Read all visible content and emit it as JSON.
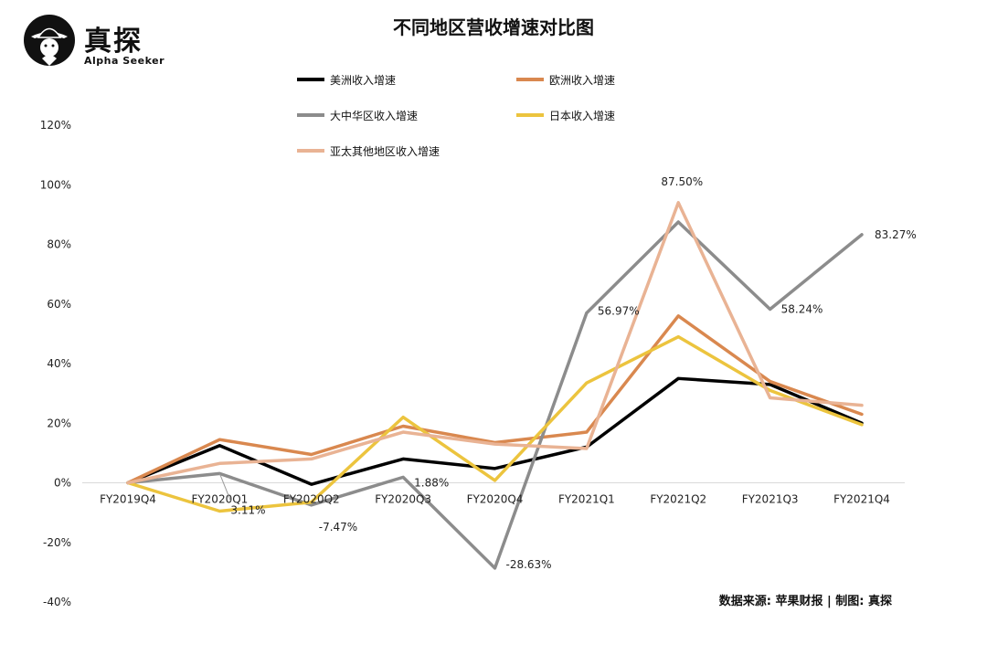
{
  "brand": {
    "name": "真探",
    "subtitle": "Alpha Seeker"
  },
  "source_note": "数据来源: 苹果财报 | 制图: 真探",
  "chart_data": {
    "type": "line",
    "title": "不同地区营收增速对比图",
    "categories": [
      "FY2019Q4",
      "FY2020Q1",
      "FY2020Q2",
      "FY2020Q3",
      "FY2020Q4",
      "FY2021Q1",
      "FY2021Q2",
      "FY2021Q3",
      "FY2021Q4"
    ],
    "y_ticks": [
      "120%",
      "100%",
      "80%",
      "60%",
      "40%",
      "20%",
      "0%",
      "-20%",
      "-40%"
    ],
    "ylim": [
      -40,
      120
    ],
    "legend_position": "top",
    "grid": false,
    "series": [
      {
        "name": "美洲收入增速",
        "color": "#000000",
        "width": 3.5,
        "values": [
          0,
          12.5,
          -0.5,
          8,
          4.8,
          12,
          35,
          33,
          20
        ]
      },
      {
        "name": "欧洲收入增速",
        "color": "#d9884f",
        "width": 3.5,
        "values": [
          0,
          14.5,
          9.5,
          19,
          13.5,
          17,
          56,
          34,
          23
        ]
      },
      {
        "name": "大中华区收入增速",
        "color": "#8c8c8c",
        "width": 3.5,
        "values": [
          0,
          3.11,
          -7.47,
          1.88,
          -28.63,
          56.97,
          87.5,
          58.24,
          83.27
        ]
      },
      {
        "name": "日本收入增速",
        "color": "#ecc43e",
        "width": 3.5,
        "values": [
          0,
          -9.5,
          -6.5,
          22,
          0.8,
          33.5,
          49,
          31,
          19.5
        ]
      },
      {
        "name": "亚太其他地区收入增速",
        "color": "#e9b394",
        "width": 3.5,
        "values": [
          0,
          6.5,
          8,
          17,
          13,
          11.5,
          94,
          28.5,
          26
        ]
      }
    ],
    "annotations": [
      {
        "text": "3.11%",
        "series": 2,
        "index": 1
      },
      {
        "text": "-7.47%",
        "series": 2,
        "index": 2
      },
      {
        "text": "1.88%",
        "series": 2,
        "index": 3
      },
      {
        "text": "-28.63%",
        "series": 2,
        "index": 4
      },
      {
        "text": "56.97%",
        "series": 2,
        "index": 5
      },
      {
        "text": "87.50%",
        "series": 2,
        "index": 6
      },
      {
        "text": "58.24%",
        "series": 2,
        "index": 7
      },
      {
        "text": "83.27%",
        "series": 2,
        "index": 8
      }
    ]
  }
}
